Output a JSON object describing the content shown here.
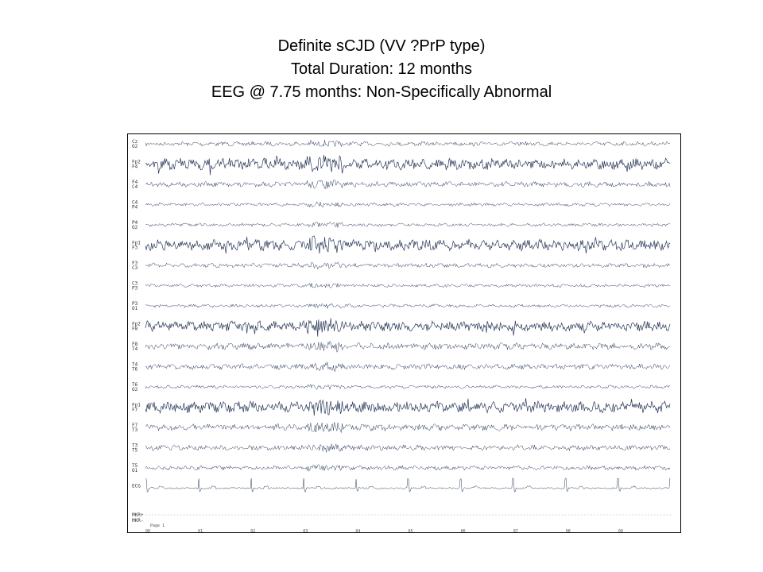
{
  "slide": {
    "title_lines": [
      "Definite sCJD (VV ?PrP type)",
      "Total Duration: 12 months",
      "EEG @ 7.75 months: Non-Specifically Abnormal"
    ]
  },
  "eeg": {
    "channels": [
      {
        "top": "Cz",
        "bottom": "O2",
        "amplitude": 0.4
      },
      {
        "top": "Fp2",
        "bottom": "F4",
        "amplitude": 1.0
      },
      {
        "top": "F4",
        "bottom": "C4",
        "amplitude": 0.5
      },
      {
        "top": "C4",
        "bottom": "P4",
        "amplitude": 0.3
      },
      {
        "top": "P4",
        "bottom": "O2",
        "amplitude": 0.3
      },
      {
        "top": "Fp1",
        "bottom": "F3",
        "amplitude": 1.0
      },
      {
        "top": "F3",
        "bottom": "C3",
        "amplitude": 0.4
      },
      {
        "top": "C3",
        "bottom": "P3",
        "amplitude": 0.3
      },
      {
        "top": "P3",
        "bottom": "O1",
        "amplitude": 0.3
      },
      {
        "top": "Fp2",
        "bottom": "F8",
        "amplitude": 0.9
      },
      {
        "top": "F8",
        "bottom": "T4",
        "amplitude": 0.6
      },
      {
        "top": "T4",
        "bottom": "T6",
        "amplitude": 0.5
      },
      {
        "top": "T6",
        "bottom": "O2",
        "amplitude": 0.3
      },
      {
        "top": "Fp1",
        "bottom": "F7",
        "amplitude": 1.0
      },
      {
        "top": "F7",
        "bottom": "T3",
        "amplitude": 0.6
      },
      {
        "top": "T3",
        "bottom": "T5",
        "amplitude": 0.5
      },
      {
        "top": "T5",
        "bottom": "O1",
        "amplitude": 0.4
      },
      {
        "top": "ECG",
        "bottom": "",
        "amplitude": 0.8,
        "ecg": true
      }
    ],
    "marker_labels": [
      "MKR+",
      "MKR-"
    ],
    "page_label": "Page 1",
    "time_ticks": [
      "00",
      "01",
      "02",
      "03",
      "04",
      "05",
      "06",
      "07",
      "08",
      "09"
    ],
    "trace_color": "#2a3a5a"
  }
}
